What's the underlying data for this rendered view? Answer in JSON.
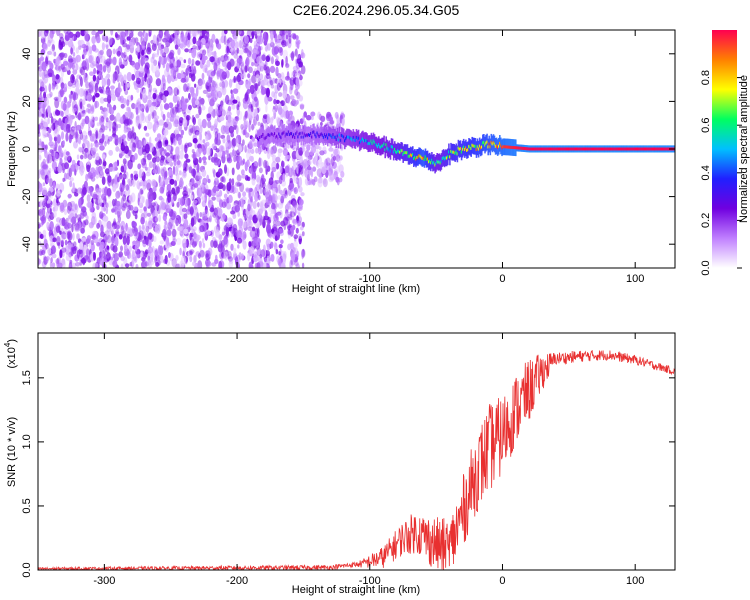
{
  "figure": {
    "title": "C2E6.2024.296.05.34.G05"
  },
  "chart_data": [
    {
      "type": "heatmap",
      "name": "spectrogram",
      "xlabel": "Height of straight line (km)",
      "ylabel": "Frequency (Hz)",
      "xlim": [
        -350,
        130
      ],
      "ylim": [
        -50,
        50
      ],
      "xticks": [
        -300,
        -200,
        -100,
        0,
        100
      ],
      "yticks": [
        -40,
        -20,
        0,
        20,
        40
      ],
      "colorbar": {
        "label": "Normalized spectral amplitude",
        "range": [
          0,
          1
        ],
        "ticks": [
          "0.0",
          "0.2",
          "0.4",
          "0.6",
          "0.8"
        ],
        "tick_values": [
          0.0,
          0.2,
          0.4,
          0.6,
          0.8
        ],
        "colormap": [
          "#ffffff",
          "#c080ff",
          "#7000e0",
          "#2020ff",
          "#00c0ff",
          "#00ff60",
          "#ffff00",
          "#ff8000",
          "#ff0050"
        ]
      },
      "regions": [
        {
          "x_range": [
            -350,
            -150
          ],
          "freq_range": [
            -50,
            50
          ],
          "description": "noise",
          "mean_amplitude": 0.15
        },
        {
          "x_range": [
            -150,
            -120
          ],
          "freq_range": [
            -15,
            15
          ],
          "description": "noise",
          "mean_amplitude": 0.12
        }
      ],
      "signal_track": [
        {
          "x": -185,
          "freq": 5,
          "amp": 0.25
        },
        {
          "x": -160,
          "freq": 6,
          "amp": 0.3
        },
        {
          "x": -140,
          "freq": 6,
          "amp": 0.35
        },
        {
          "x": -125,
          "freq": 5,
          "amp": 0.45
        },
        {
          "x": -110,
          "freq": 4,
          "amp": 0.5
        },
        {
          "x": -95,
          "freq": 2,
          "amp": 0.55
        },
        {
          "x": -85,
          "freq": 0,
          "amp": 0.6
        },
        {
          "x": -75,
          "freq": -2,
          "amp": 0.7
        },
        {
          "x": -60,
          "freq": -4,
          "amp": 0.9
        },
        {
          "x": -50,
          "freq": -6,
          "amp": 0.6
        },
        {
          "x": -40,
          "freq": -2,
          "amp": 0.75
        },
        {
          "x": -30,
          "freq": 0,
          "amp": 0.8
        },
        {
          "x": -20,
          "freq": 1,
          "amp": 0.85
        },
        {
          "x": -10,
          "freq": 2,
          "amp": 0.9
        },
        {
          "x": 0,
          "freq": 1,
          "amp": 0.95
        },
        {
          "x": 20,
          "freq": 0,
          "amp": 1.0
        },
        {
          "x": 60,
          "freq": 0,
          "amp": 1.0
        },
        {
          "x": 90,
          "freq": 0,
          "amp": 1.0
        },
        {
          "x": 130,
          "freq": 0,
          "amp": 1.0
        }
      ]
    },
    {
      "type": "line",
      "name": "snr",
      "xlabel": "Height of straight line (km)",
      "ylabel": "SNR (10 * v/v)",
      "y_multiplier_label": "(x10",
      "y_multiplier_exp": "4",
      "xlim": [
        -350,
        130
      ],
      "ylim": [
        0,
        1.85
      ],
      "xticks": [
        -300,
        -200,
        -100,
        0,
        100
      ],
      "yticks": [
        "0.0",
        "0.5",
        "1.0",
        "1.5"
      ],
      "ytick_values": [
        0.0,
        0.5,
        1.0,
        1.5
      ],
      "color": "#e83030",
      "envelope": [
        {
          "x": -350,
          "y": 0.01
        },
        {
          "x": -130,
          "y": 0.02
        },
        {
          "x": -105,
          "y": 0.05
        },
        {
          "x": -90,
          "y": 0.1
        },
        {
          "x": -75,
          "y": 0.25
        },
        {
          "x": -65,
          "y": 0.3
        },
        {
          "x": -50,
          "y": 0.2
        },
        {
          "x": -40,
          "y": 0.15
        },
        {
          "x": -30,
          "y": 0.45
        },
        {
          "x": -20,
          "y": 0.75
        },
        {
          "x": -10,
          "y": 0.95
        },
        {
          "x": 0,
          "y": 1.05
        },
        {
          "x": 10,
          "y": 1.25
        },
        {
          "x": 20,
          "y": 1.4
        },
        {
          "x": 30,
          "y": 1.55
        },
        {
          "x": 40,
          "y": 1.65
        },
        {
          "x": 60,
          "y": 1.67
        },
        {
          "x": 80,
          "y": 1.68
        },
        {
          "x": 100,
          "y": 1.64
        },
        {
          "x": 130,
          "y": 1.55
        }
      ],
      "noise_amplitude": [
        {
          "x": -350,
          "a": 0.01
        },
        {
          "x": -110,
          "a": 0.02
        },
        {
          "x": -80,
          "a": 0.12
        },
        {
          "x": -40,
          "a": 0.25
        },
        {
          "x": -10,
          "a": 0.35
        },
        {
          "x": 20,
          "a": 0.25
        },
        {
          "x": 40,
          "a": 0.05
        },
        {
          "x": 130,
          "a": 0.03
        }
      ]
    }
  ]
}
